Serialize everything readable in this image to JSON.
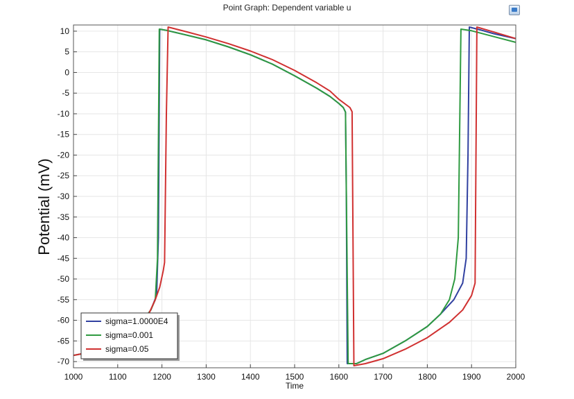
{
  "window": {
    "title": "Point Graph: Dependent variable u",
    "export_icon": "image-export-icon"
  },
  "chart_data": {
    "type": "line",
    "title": "Point Graph: Dependent variable u",
    "xlabel": "Time",
    "ylabel": "Potential (mV)",
    "xlim": [
      1000,
      2000
    ],
    "ylim": [
      -71.5,
      11.5
    ],
    "xticks": [
      1000,
      1100,
      1200,
      1300,
      1400,
      1500,
      1600,
      1700,
      1800,
      1900,
      2000
    ],
    "yticks": [
      10,
      5,
      0,
      -5,
      -10,
      -15,
      -20,
      -25,
      -30,
      -35,
      -40,
      -45,
      -50,
      -55,
      -60,
      -65,
      -70
    ],
    "grid": true,
    "legend_position": "bottom-left",
    "series": [
      {
        "name": "sigma=1.0000E4",
        "color": "#3040a0",
        "points": [
          [
            1000,
            -68.5
          ],
          [
            1050,
            -67.5
          ],
          [
            1100,
            -65.5
          ],
          [
            1150,
            -61
          ],
          [
            1175,
            -57.5
          ],
          [
            1188,
            -54
          ],
          [
            1192,
            -40
          ],
          [
            1195,
            10.5
          ],
          [
            1210,
            10.2
          ],
          [
            1250,
            9.2
          ],
          [
            1300,
            7.9
          ],
          [
            1350,
            6.2
          ],
          [
            1400,
            4.3
          ],
          [
            1450,
            2
          ],
          [
            1500,
            -0.8
          ],
          [
            1550,
            -3.8
          ],
          [
            1580,
            -5.8
          ],
          [
            1600,
            -7.5
          ],
          [
            1610,
            -8.5
          ],
          [
            1615,
            -9.6
          ],
          [
            1617,
            -30
          ],
          [
            1619,
            -70.5
          ],
          [
            1640,
            -70.5
          ],
          [
            1660,
            -69.5
          ],
          [
            1700,
            -68
          ],
          [
            1750,
            -65
          ],
          [
            1800,
            -61.5
          ],
          [
            1830,
            -58.5
          ],
          [
            1860,
            -55
          ],
          [
            1880,
            -51
          ],
          [
            1888,
            -45
          ],
          [
            1892,
            -20
          ],
          [
            1895,
            11
          ],
          [
            1920,
            10.3
          ],
          [
            1950,
            9.4
          ],
          [
            2000,
            8.2
          ]
        ]
      },
      {
        "name": "sigma=0.001",
        "color": "#2e9a40",
        "points": [
          [
            1000,
            -68.5
          ],
          [
            1050,
            -67.5
          ],
          [
            1100,
            -65.5
          ],
          [
            1150,
            -61
          ],
          [
            1175,
            -57.5
          ],
          [
            1185,
            -55
          ],
          [
            1190,
            -45
          ],
          [
            1194,
            10.5
          ],
          [
            1210,
            10.2
          ],
          [
            1250,
            9.2
          ],
          [
            1300,
            7.9
          ],
          [
            1350,
            6.2
          ],
          [
            1400,
            4.3
          ],
          [
            1450,
            2
          ],
          [
            1500,
            -0.8
          ],
          [
            1550,
            -3.8
          ],
          [
            1580,
            -5.8
          ],
          [
            1600,
            -7.5
          ],
          [
            1610,
            -8.5
          ],
          [
            1615,
            -9.6
          ],
          [
            1618,
            -40
          ],
          [
            1621,
            -70.5
          ],
          [
            1640,
            -70.5
          ],
          [
            1660,
            -69.5
          ],
          [
            1700,
            -68
          ],
          [
            1750,
            -65
          ],
          [
            1800,
            -61.5
          ],
          [
            1830,
            -58.5
          ],
          [
            1850,
            -55
          ],
          [
            1862,
            -50
          ],
          [
            1870,
            -40
          ],
          [
            1876,
            10.5
          ],
          [
            1900,
            10.1
          ],
          [
            1950,
            8.7
          ],
          [
            2000,
            7.3
          ]
        ]
      },
      {
        "name": "sigma=0.05",
        "color": "#d03030",
        "points": [
          [
            1000,
            -68.5
          ],
          [
            1050,
            -67.5
          ],
          [
            1100,
            -65.5
          ],
          [
            1150,
            -61
          ],
          [
            1170,
            -58.5
          ],
          [
            1185,
            -55
          ],
          [
            1195,
            -52
          ],
          [
            1203,
            -48
          ],
          [
            1206,
            -46
          ],
          [
            1210,
            -10
          ],
          [
            1214,
            11
          ],
          [
            1250,
            10
          ],
          [
            1300,
            8.6
          ],
          [
            1350,
            7
          ],
          [
            1400,
            5.2
          ],
          [
            1450,
            3.1
          ],
          [
            1500,
            0.5
          ],
          [
            1550,
            -2.5
          ],
          [
            1580,
            -4.5
          ],
          [
            1600,
            -6.5
          ],
          [
            1625,
            -8.5
          ],
          [
            1630,
            -9.5
          ],
          [
            1632,
            -40
          ],
          [
            1634,
            -71
          ],
          [
            1660,
            -70.5
          ],
          [
            1700,
            -69.3
          ],
          [
            1750,
            -67
          ],
          [
            1800,
            -64.2
          ],
          [
            1850,
            -60.5
          ],
          [
            1880,
            -57.5
          ],
          [
            1900,
            -54
          ],
          [
            1908,
            -51
          ],
          [
            1910,
            -20
          ],
          [
            1912,
            11
          ],
          [
            1950,
            9.8
          ],
          [
            2000,
            8.2
          ]
        ]
      }
    ]
  }
}
